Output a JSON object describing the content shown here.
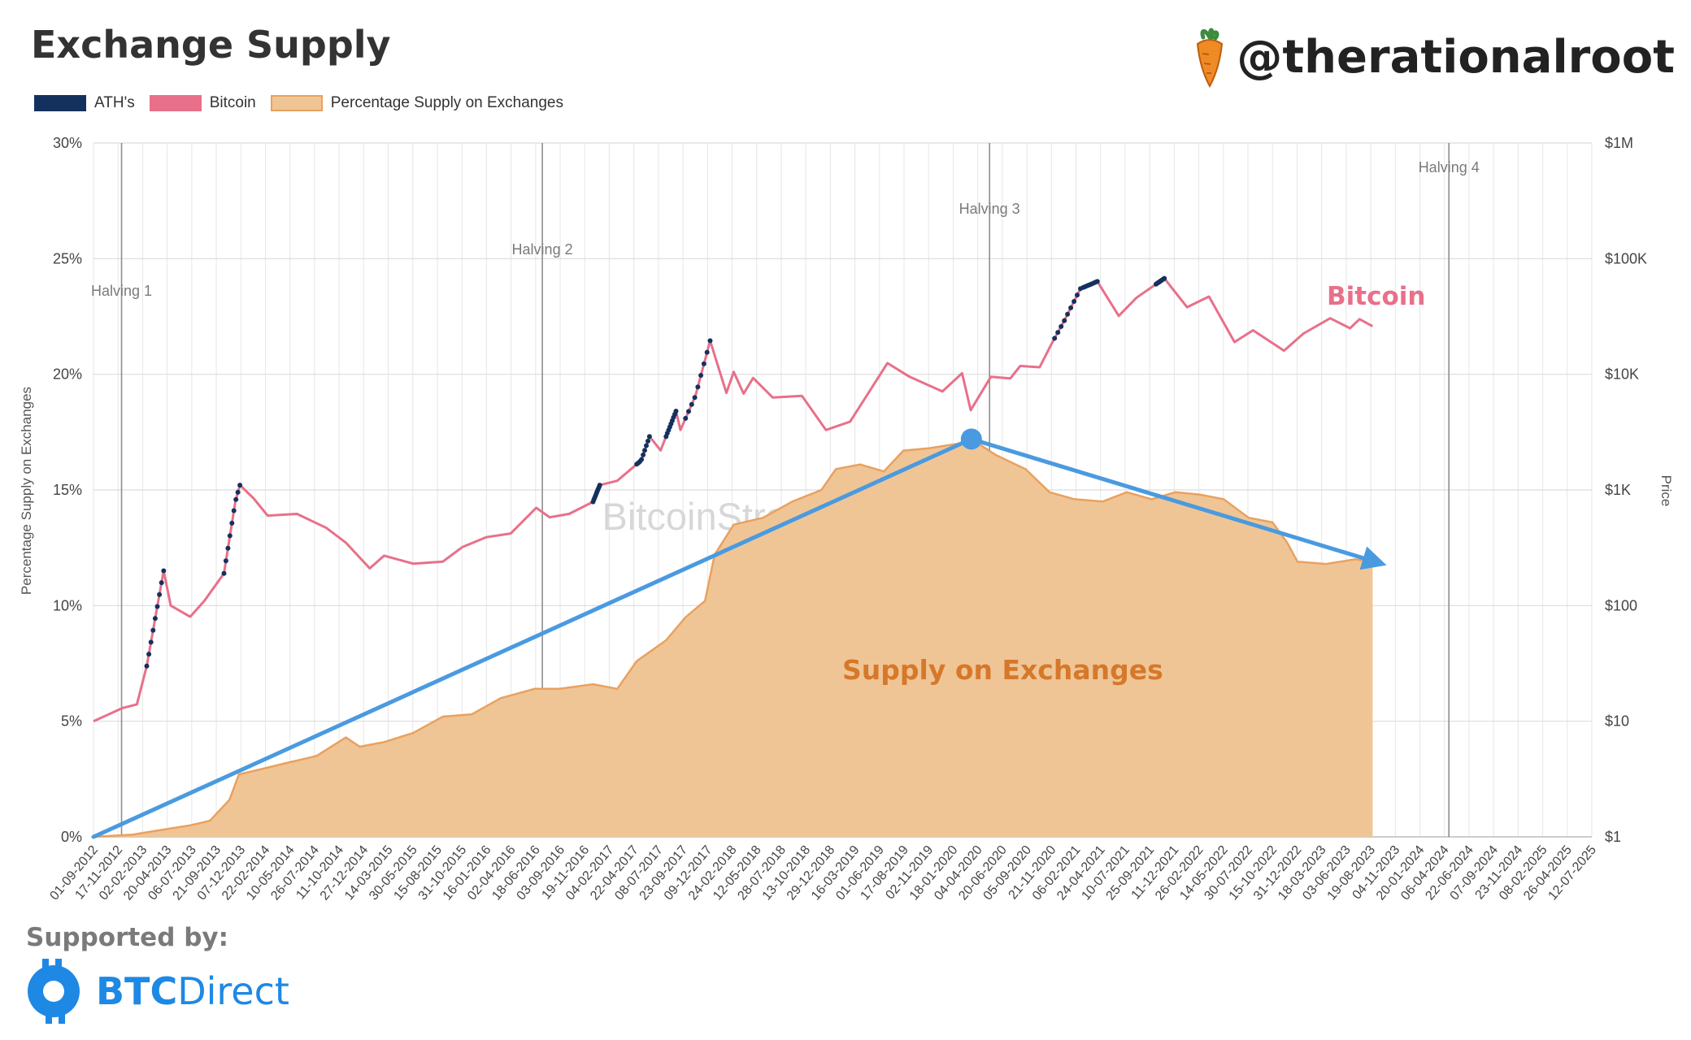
{
  "title": "Exchange Supply",
  "handle": "@therationalroot",
  "watermark": "BitcoinStrategyPlatform.com",
  "supported_by": "Supported by:",
  "brand": {
    "bold": "BTC",
    "light": "Direct"
  },
  "colors": {
    "ath": "#14315e",
    "bitcoin": "#e8708a",
    "supply_fill": "#f0c596",
    "supply_line": "#e9a15e",
    "arrow": "#4a9ae0",
    "btc_direct": "#1e88e5"
  },
  "chart_data": {
    "type": "area",
    "legend": [
      "ATH's",
      "Bitcoin",
      "Percentage Supply on Exchanges"
    ],
    "y_left": {
      "label": "Percentage Supply on Exchanges",
      "range": [
        0,
        30
      ],
      "ticks": [
        "0%",
        "5%",
        "10%",
        "15%",
        "20%",
        "25%",
        "30%"
      ]
    },
    "y_right": {
      "label": "Price",
      "scale": "log",
      "range": [
        1,
        1000000
      ],
      "ticks": [
        "$1",
        "$10",
        "$100",
        "$1K",
        "$10K",
        "$100K",
        "$1M"
      ]
    },
    "x_ticks": [
      "01-09-2012",
      "17-11-2012",
      "02-02-2013",
      "20-04-2013",
      "06-07-2013",
      "21-09-2013",
      "07-12-2013",
      "22-02-2014",
      "10-05-2014",
      "26-07-2014",
      "11-10-2014",
      "27-12-2014",
      "14-03-2015",
      "30-05-2015",
      "15-08-2015",
      "31-10-2015",
      "16-01-2016",
      "02-04-2016",
      "18-06-2016",
      "03-09-2016",
      "19-11-2016",
      "04-02-2017",
      "22-04-2017",
      "08-07-2017",
      "23-09-2017",
      "09-12-2017",
      "24-02-2018",
      "12-05-2018",
      "28-07-2018",
      "13-10-2018",
      "29-12-2018",
      "16-03-2019",
      "01-06-2019",
      "17-08-2019",
      "02-11-2019",
      "18-01-2020",
      "04-04-2020",
      "20-06-2020",
      "05-09-2020",
      "21-11-2020",
      "06-02-2021",
      "24-04-2021",
      "10-07-2021",
      "25-09-2021",
      "11-12-2021",
      "26-02-2022",
      "14-05-2022",
      "30-07-2022",
      "15-10-2022",
      "31-12-2022",
      "18-03-2023",
      "03-06-2023",
      "19-08-2023",
      "04-11-2023",
      "20-01-2024",
      "06-04-2024",
      "22-06-2024",
      "07-09-2024",
      "23-11-2024",
      "08-02-2025",
      "26-04-2025",
      "12-07-2025"
    ],
    "halvings": [
      {
        "label": "Halving 1",
        "date": "2012-11-28"
      },
      {
        "label": "Halving 2",
        "date": "2016-07-09"
      },
      {
        "label": "Halving 3",
        "date": "2020-05-11"
      },
      {
        "label": "Halving 4",
        "date": "2024-04-20"
      }
    ],
    "annotations": [
      {
        "text": "Bitcoin",
        "color": "#e8708a"
      },
      {
        "text": "Supply on Exchanges",
        "color": "#d6782a"
      }
    ],
    "trend_arrows": [
      {
        "from": [
          "2012-09-01",
          0
        ],
        "to": [
          "2020-03-15",
          17.2
        ]
      },
      {
        "from": [
          "2020-03-15",
          17.2
        ],
        "to": [
          "2023-09-01",
          11.9
        ]
      }
    ],
    "series": [
      {
        "name": "Percentage Supply on Exchanges",
        "axis": "left",
        "points": [
          [
            "2012-09-01",
            0.0
          ],
          [
            "2013-01-01",
            0.1
          ],
          [
            "2013-04-01",
            0.3
          ],
          [
            "2013-07-01",
            0.5
          ],
          [
            "2013-09-01",
            0.7
          ],
          [
            "2013-11-01",
            1.6
          ],
          [
            "2013-12-01",
            2.7
          ],
          [
            "2014-02-01",
            2.9
          ],
          [
            "2014-05-01",
            3.2
          ],
          [
            "2014-08-01",
            3.5
          ],
          [
            "2014-11-01",
            4.3
          ],
          [
            "2014-12-15",
            3.9
          ],
          [
            "2015-03-01",
            4.1
          ],
          [
            "2015-06-01",
            4.5
          ],
          [
            "2015-09-01",
            5.2
          ],
          [
            "2015-12-01",
            5.3
          ],
          [
            "2016-03-01",
            6.0
          ],
          [
            "2016-06-15",
            6.4
          ],
          [
            "2016-09-01",
            6.4
          ],
          [
            "2016-12-15",
            6.6
          ],
          [
            "2017-03-01",
            6.4
          ],
          [
            "2017-05-01",
            7.6
          ],
          [
            "2017-08-01",
            8.5
          ],
          [
            "2017-10-01",
            9.5
          ],
          [
            "2017-12-01",
            10.2
          ],
          [
            "2017-12-31",
            12.2
          ],
          [
            "2018-03-01",
            13.5
          ],
          [
            "2018-06-01",
            13.8
          ],
          [
            "2018-09-01",
            14.5
          ],
          [
            "2018-12-01",
            15.0
          ],
          [
            "2019-01-15",
            15.9
          ],
          [
            "2019-04-01",
            16.1
          ],
          [
            "2019-06-15",
            15.8
          ],
          [
            "2019-08-15",
            16.7
          ],
          [
            "2019-11-01",
            16.8
          ],
          [
            "2020-02-01",
            17.0
          ],
          [
            "2020-03-15",
            17.2
          ],
          [
            "2020-06-01",
            16.5
          ],
          [
            "2020-09-01",
            15.9
          ],
          [
            "2020-11-15",
            14.9
          ],
          [
            "2021-02-01",
            14.6
          ],
          [
            "2021-05-01",
            14.5
          ],
          [
            "2021-07-15",
            14.9
          ],
          [
            "2021-10-01",
            14.6
          ],
          [
            "2021-12-15",
            14.9
          ],
          [
            "2022-03-01",
            14.8
          ],
          [
            "2022-05-15",
            14.6
          ],
          [
            "2022-08-01",
            13.8
          ],
          [
            "2022-10-15",
            13.6
          ],
          [
            "2022-12-01",
            12.7
          ],
          [
            "2023-01-01",
            11.9
          ],
          [
            "2023-04-01",
            11.8
          ],
          [
            "2023-07-01",
            12.0
          ],
          [
            "2023-08-25",
            11.9
          ]
        ]
      },
      {
        "name": "Bitcoin",
        "axis": "right",
        "points": [
          [
            "2012-09-01",
            10
          ],
          [
            "2012-12-01",
            13
          ],
          [
            "2013-01-15",
            14
          ],
          [
            "2013-02-15",
            30
          ],
          [
            "2013-04-09",
            200
          ],
          [
            "2013-05-01",
            100
          ],
          [
            "2013-07-01",
            80
          ],
          [
            "2013-08-15",
            110
          ],
          [
            "2013-10-15",
            190
          ],
          [
            "2013-11-20",
            800
          ],
          [
            "2013-12-04",
            1100
          ],
          [
            "2014-01-15",
            850
          ],
          [
            "2014-03-01",
            600
          ],
          [
            "2014-06-01",
            620
          ],
          [
            "2014-09-01",
            470
          ],
          [
            "2014-11-01",
            350
          ],
          [
            "2015-01-15",
            210
          ],
          [
            "2015-03-01",
            270
          ],
          [
            "2015-06-01",
            230
          ],
          [
            "2015-09-01",
            240
          ],
          [
            "2015-11-01",
            320
          ],
          [
            "2016-01-15",
            390
          ],
          [
            "2016-04-01",
            420
          ],
          [
            "2016-06-20",
            700
          ],
          [
            "2016-08-01",
            580
          ],
          [
            "2016-10-01",
            620
          ],
          [
            "2016-12-15",
            790
          ],
          [
            "2017-01-05",
            1100
          ],
          [
            "2017-03-01",
            1200
          ],
          [
            "2017-05-15",
            1800
          ],
          [
            "2017-06-10",
            2900
          ],
          [
            "2017-07-15",
            2200
          ],
          [
            "2017-09-01",
            4800
          ],
          [
            "2017-09-15",
            3300
          ],
          [
            "2017-11-01",
            6500
          ],
          [
            "2017-12-17",
            19500
          ],
          [
            "2018-02-06",
            6900
          ],
          [
            "2018-03-01",
            10500
          ],
          [
            "2018-04-01",
            6800
          ],
          [
            "2018-05-01",
            9300
          ],
          [
            "2018-07-01",
            6300
          ],
          [
            "2018-10-01",
            6500
          ],
          [
            "2018-12-15",
            3300
          ],
          [
            "2019-03-01",
            3900
          ],
          [
            "2019-06-26",
            12500
          ],
          [
            "2019-09-01",
            9600
          ],
          [
            "2019-12-15",
            7100
          ],
          [
            "2020-02-15",
            10200
          ],
          [
            "2020-03-13",
            4900
          ],
          [
            "2020-05-15",
            9500
          ],
          [
            "2020-07-15",
            9200
          ],
          [
            "2020-08-15",
            11800
          ],
          [
            "2020-10-15",
            11500
          ],
          [
            "2020-11-20",
            18000
          ],
          [
            "2020-12-31",
            29000
          ],
          [
            "2021-02-20",
            55000
          ],
          [
            "2021-04-14",
            63500
          ],
          [
            "2021-06-20",
            32000
          ],
          [
            "2021-08-15",
            46000
          ],
          [
            "2021-11-10",
            67500
          ],
          [
            "2022-01-20",
            38000
          ],
          [
            "2022-03-30",
            47000
          ],
          [
            "2022-06-18",
            19000
          ],
          [
            "2022-08-15",
            24000
          ],
          [
            "2022-11-20",
            16000
          ],
          [
            "2023-01-20",
            22500
          ],
          [
            "2023-04-14",
            30500
          ],
          [
            "2023-06-15",
            25000
          ],
          [
            "2023-07-15",
            30000
          ],
          [
            "2023-08-25",
            26000
          ]
        ]
      }
    ],
    "ath_segments": [
      [
        "2013-02-15",
        "2013-04-09"
      ],
      [
        "2013-10-15",
        "2013-12-04"
      ],
      [
        "2016-12-15",
        "2017-01-05"
      ],
      [
        "2017-05-01",
        "2017-06-10"
      ],
      [
        "2017-08-01",
        "2017-09-01"
      ],
      [
        "2017-10-01",
        "2017-12-17"
      ],
      [
        "2020-12-01",
        "2021-02-20"
      ],
      [
        "2021-03-01",
        "2021-04-14"
      ],
      [
        "2021-10-15",
        "2021-11-10"
      ]
    ]
  }
}
